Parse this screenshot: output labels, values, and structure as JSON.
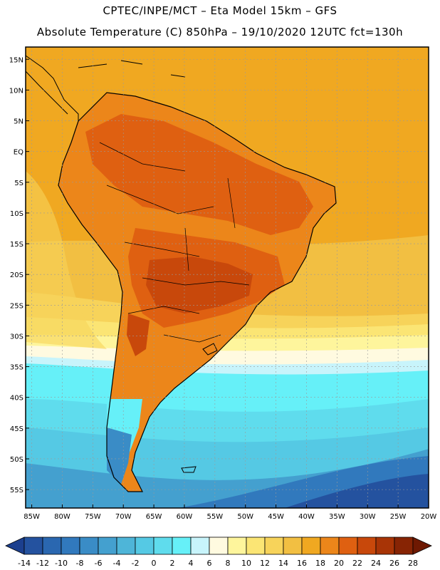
{
  "header": {
    "line1": "CPTEC/INPE/MCT –  Eta Model 15km – GFS",
    "line2": "Absolute Temperature (C) 850hPa – 19/10/2020 12UTC fct=130h"
  },
  "map": {
    "region": "South America",
    "lat_range": [
      -58,
      17
    ],
    "lon_range": [
      -86,
      -20
    ],
    "lat_ticks": [
      "15N",
      "10N",
      "5N",
      "EQ",
      "5S",
      "10S",
      "15S",
      "20S",
      "25S",
      "30S",
      "35S",
      "40S",
      "45S",
      "50S",
      "55S"
    ],
    "lat_values": [
      15,
      10,
      5,
      0,
      -5,
      -10,
      -15,
      -20,
      -25,
      -30,
      -35,
      -40,
      -45,
      -50,
      -55
    ],
    "lon_ticks": [
      "85W",
      "80W",
      "75W",
      "70W",
      "65W",
      "60W",
      "55W",
      "50W",
      "45W",
      "40W",
      "35W",
      "30W",
      "25W",
      "20W"
    ],
    "lon_values": [
      -85,
      -80,
      -75,
      -70,
      -65,
      -60,
      -55,
      -50,
      -45,
      -40,
      -35,
      -30,
      -25,
      -20
    ]
  },
  "colorbar": {
    "labels": [
      "-14",
      "-12",
      "-10",
      "-8",
      "-6",
      "-4",
      "-2",
      "0",
      "2",
      "4",
      "6",
      "8",
      "10",
      "12",
      "14",
      "16",
      "18",
      "20",
      "22",
      "24",
      "26",
      "28"
    ],
    "colors": [
      "#1c3f8e",
      "#24529f",
      "#2a67b0",
      "#3179bd",
      "#3a8cc6",
      "#44a0cf",
      "#4eb5d8",
      "#55c9e4",
      "#5fdced",
      "#66f0f8",
      "#c8f4fb",
      "#fffae0",
      "#fef59c",
      "#fbe574",
      "#f7d35a",
      "#f2bf42",
      "#f0a821",
      "#ec861a",
      "#df6011",
      "#c8480b",
      "#a83406",
      "#872404",
      "#6e1902"
    ]
  },
  "colors": {
    "ocean_north": "#f0a821",
    "ocean_mid": "#f2bf42",
    "ocean_south": "#5fdced",
    "ocean_deep_south": "#2a67b0",
    "land_hot": "#c8480b",
    "land_warm": "#df6011",
    "coast": "#000000"
  }
}
